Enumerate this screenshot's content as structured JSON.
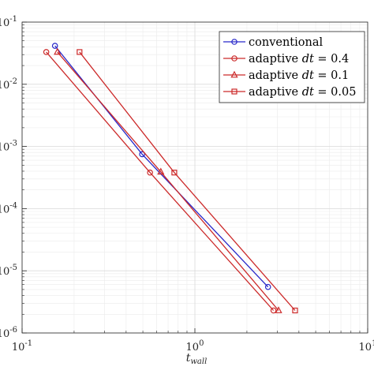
{
  "chart_data": {
    "type": "line",
    "title": "",
    "xlabel": "t_wall",
    "ylabel": "",
    "xscale": "log",
    "yscale": "log",
    "xlim": [
      0.1,
      10
    ],
    "ylim": [
      1e-06,
      0.1
    ],
    "x_ticks": [
      {
        "base": "10",
        "exp": "-1"
      },
      {
        "base": "10",
        "exp": "0"
      },
      {
        "base": "10",
        "exp": "1"
      }
    ],
    "y_ticks": [
      {
        "base": "10",
        "exp": "-1"
      },
      {
        "base": "10",
        "exp": "-2"
      },
      {
        "base": "10",
        "exp": "-3"
      },
      {
        "base": "10",
        "exp": "-4"
      },
      {
        "base": "10",
        "exp": "-5"
      },
      {
        "base": "10",
        "exp": "-6"
      }
    ],
    "grid": true,
    "legend_position": "top-right",
    "series": [
      {
        "name": "conventional",
        "color": "#2727c9",
        "marker": "circle",
        "x": [
          0.155,
          0.495,
          2.65
        ],
        "y": [
          0.0415,
          0.00075,
          5.5e-06
        ]
      },
      {
        "name": "adaptive dt = 0.4",
        "legend_prefix": "adaptive ",
        "legend_var": "dt",
        "legend_suffix": " = 0.4",
        "color": "#cc2a2a",
        "marker": "circle",
        "x": [
          0.138,
          0.55,
          2.85
        ],
        "y": [
          0.033,
          0.00038,
          2.3e-06
        ]
      },
      {
        "name": "adaptive dt = 0.1",
        "legend_prefix": "adaptive ",
        "legend_var": "dt",
        "legend_suffix": " = 0.1",
        "color": "#cc2a2a",
        "marker": "triangle",
        "x": [
          0.16,
          0.635,
          3.05
        ],
        "y": [
          0.033,
          0.00039,
          2.3e-06
        ]
      },
      {
        "name": "adaptive dt = 0.05",
        "legend_prefix": "adaptive ",
        "legend_var": "dt",
        "legend_suffix": " = 0.05",
        "color": "#cc2a2a",
        "marker": "square",
        "x": [
          0.215,
          0.76,
          3.8
        ],
        "y": [
          0.033,
          0.00038,
          2.3e-06
        ]
      }
    ]
  }
}
